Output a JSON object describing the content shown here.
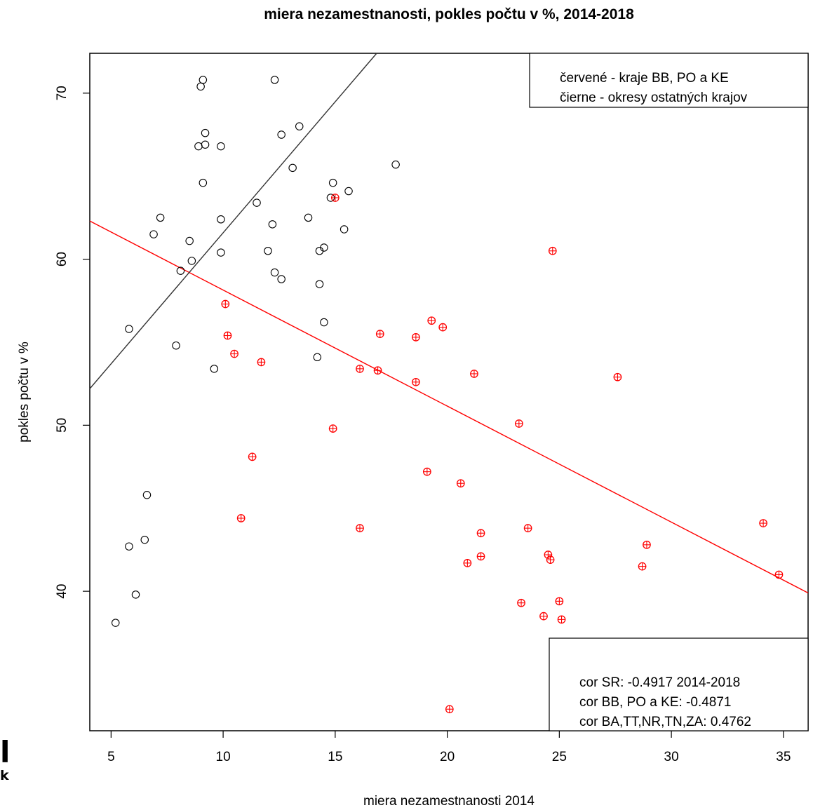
{
  "chart_data": {
    "type": "scatter",
    "title": "miera nezamestnanosti, pokles počtu v %, 2014-2018",
    "xlabel": "miera nezamestnanosti 2014",
    "ylabel": "pokles počtu v %",
    "xlim": [
      4.05,
      36.1
    ],
    "ylim": [
      31.6,
      72.4
    ],
    "x_ticks": [
      "5",
      "10",
      "15",
      "20",
      "25",
      "30",
      "35"
    ],
    "y_ticks": [
      "40",
      "50",
      "60",
      "70"
    ],
    "grid": false,
    "legend_position": "top-right",
    "legend": [
      "červené - kraje BB, PO a KE",
      "čierne - okresy ostatných krajov"
    ],
    "stats_position": "bottom-right",
    "stats": [
      "cor SR: -0.4917 2014-2018",
      "cor BB, PO a KE: -0.4871",
      "cor BA,TT,NR,TN,ZA: 0.4762"
    ],
    "series": [
      {
        "color": "#000000",
        "marker": "circle",
        "points": [
          [
            9.1,
            70.8
          ],
          [
            9.0,
            70.4
          ],
          [
            12.3,
            70.8
          ],
          [
            9.2,
            67.6
          ],
          [
            12.6,
            67.5
          ],
          [
            13.4,
            68.0
          ],
          [
            8.9,
            66.8
          ],
          [
            9.2,
            66.9
          ],
          [
            9.9,
            66.8
          ],
          [
            13.1,
            65.5
          ],
          [
            17.7,
            65.7
          ],
          [
            9.1,
            64.6
          ],
          [
            14.9,
            64.6
          ],
          [
            15.6,
            64.1
          ],
          [
            14.8,
            63.7
          ],
          [
            11.5,
            63.4
          ],
          [
            7.2,
            62.5
          ],
          [
            9.9,
            62.4
          ],
          [
            13.8,
            62.5
          ],
          [
            12.2,
            62.1
          ],
          [
            15.4,
            61.8
          ],
          [
            6.9,
            61.5
          ],
          [
            8.5,
            61.1
          ],
          [
            14.5,
            60.7
          ],
          [
            14.3,
            60.5
          ],
          [
            12.0,
            60.5
          ],
          [
            9.9,
            60.4
          ],
          [
            8.6,
            59.9
          ],
          [
            8.1,
            59.3
          ],
          [
            12.3,
            59.2
          ],
          [
            12.6,
            58.8
          ],
          [
            14.3,
            58.5
          ],
          [
            14.5,
            56.2
          ],
          [
            5.8,
            55.8
          ],
          [
            7.9,
            54.8
          ],
          [
            14.2,
            54.1
          ],
          [
            9.6,
            53.4
          ],
          [
            6.6,
            45.8
          ],
          [
            6.5,
            43.1
          ],
          [
            5.8,
            42.7
          ],
          [
            6.1,
            39.8
          ],
          [
            5.2,
            38.1
          ]
        ]
      },
      {
        "color": "#ff0000",
        "marker": "circle-cross",
        "points": [
          [
            15.0,
            63.7
          ],
          [
            24.7,
            60.5
          ],
          [
            10.1,
            57.3
          ],
          [
            19.3,
            56.3
          ],
          [
            19.8,
            55.9
          ],
          [
            17.0,
            55.5
          ],
          [
            10.2,
            55.4
          ],
          [
            18.6,
            55.3
          ],
          [
            10.5,
            54.3
          ],
          [
            11.7,
            53.8
          ],
          [
            16.1,
            53.4
          ],
          [
            16.9,
            53.3
          ],
          [
            21.2,
            53.1
          ],
          [
            27.6,
            52.9
          ],
          [
            18.6,
            52.6
          ],
          [
            23.2,
            50.1
          ],
          [
            14.9,
            49.8
          ],
          [
            11.3,
            48.1
          ],
          [
            19.1,
            47.2
          ],
          [
            20.6,
            46.5
          ],
          [
            10.8,
            44.4
          ],
          [
            34.1,
            44.1
          ],
          [
            16.1,
            43.8
          ],
          [
            23.6,
            43.8
          ],
          [
            21.5,
            43.5
          ],
          [
            28.9,
            42.8
          ],
          [
            24.5,
            42.2
          ],
          [
            21.5,
            42.1
          ],
          [
            24.6,
            41.9
          ],
          [
            20.9,
            41.7
          ],
          [
            28.7,
            41.5
          ],
          [
            34.8,
            41.0
          ],
          [
            25.0,
            39.4
          ],
          [
            23.3,
            39.3
          ],
          [
            24.3,
            38.5
          ],
          [
            25.1,
            38.3
          ],
          [
            20.1,
            32.9
          ]
        ]
      }
    ],
    "fit_lines": [
      {
        "color": "#ff0000",
        "x1": 4.05,
        "y1": 62.3,
        "x2": 36.1,
        "y2": 39.9
      },
      {
        "color": "#000000",
        "x1": 4.05,
        "y1": 52.2,
        "x2": 16.85,
        "y2": 72.4
      }
    ]
  },
  "edge_glyphs": [
    "l",
    "k"
  ]
}
